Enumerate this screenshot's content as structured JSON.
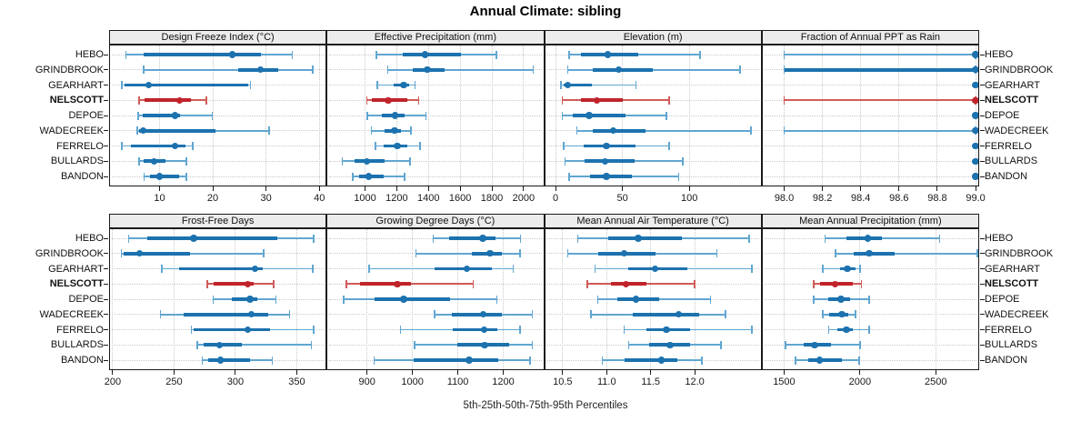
{
  "title": "Annual Climate: sibling",
  "caption": "5th-25th-50th-75th-95th Percentiles",
  "sites": [
    "HEBO",
    "GRINDBROOK",
    "GEARHART",
    "NELSCOTT",
    "DEPOE",
    "WADECREEK",
    "FERRELO",
    "BULLARDS",
    "BANDON"
  ],
  "highlight_site": "NELSCOTT",
  "colors": {
    "blue": "#1C72AE",
    "blue_light": "#60A6D1",
    "red": "#C0242B",
    "red_light": "#CF5B58",
    "grid": "#C9C9C9",
    "strip_bg": "#ECECEC",
    "border": "#1A1A1A"
  },
  "chart_data": [
    {
      "type": "dotplot-interval",
      "title": "Design Freeze Index (°C)",
      "percentiles": [
        5,
        25,
        50,
        75,
        95
      ],
      "xrange": [
        0.7,
        41.2
      ],
      "xticks": [
        10,
        20,
        30,
        40
      ],
      "xtick_labels": [
        "10",
        "20",
        "30",
        "40"
      ],
      "series": [
        {
          "site": "HEBO",
          "values": [
            3.7,
            7.0,
            23.7,
            29.0,
            34.9
          ]
        },
        {
          "site": "GRINDBROOK",
          "values": [
            7.0,
            24.8,
            29.0,
            32.3,
            38.8
          ]
        },
        {
          "site": "GEARHART",
          "values": [
            2.9,
            3.5,
            8.0,
            26.7,
            27.1
          ]
        },
        {
          "site": "NELSCOTT",
          "values": [
            6.2,
            7.2,
            13.8,
            15.9,
            18.8
          ]
        },
        {
          "site": "DEPOE",
          "values": [
            6.0,
            6.8,
            12.9,
            13.9,
            19.9
          ]
        },
        {
          "site": "WADECREEK",
          "values": [
            5.8,
            6.2,
            6.9,
            20.5,
            30.6
          ]
        },
        {
          "site": "FERRELO",
          "values": [
            2.9,
            4.6,
            12.9,
            14.8,
            16.2
          ]
        },
        {
          "site": "BULLARDS",
          "values": [
            6.2,
            7.0,
            9.0,
            11.1,
            15.0
          ]
        },
        {
          "site": "BANDON",
          "values": [
            7.1,
            8.2,
            10.0,
            13.7,
            15.0
          ]
        }
      ]
    },
    {
      "type": "dotplot-interval",
      "title": "Effective Precipitation (mm)",
      "percentiles": [
        5,
        25,
        50,
        75,
        95
      ],
      "xrange": [
        763,
        2124
      ],
      "xticks": [
        1000,
        1200,
        1400,
        1600,
        1800,
        2000
      ],
      "xtick_labels": [
        "1000",
        "1200",
        "1400",
        "1600",
        "1800",
        "2000"
      ],
      "series": [
        {
          "site": "HEBO",
          "values": [
            1073,
            1237,
            1379,
            1605,
            1827
          ]
        },
        {
          "site": "GRINDBROOK",
          "values": [
            1143,
            1303,
            1392,
            1501,
            2061
          ]
        },
        {
          "site": "GEARHART",
          "values": [
            1077,
            1181,
            1243,
            1279,
            1316
          ]
        },
        {
          "site": "NELSCOTT",
          "values": [
            1011,
            1040,
            1147,
            1266,
            1337
          ]
        },
        {
          "site": "DEPOE",
          "values": [
            1015,
            1106,
            1190,
            1250,
            1384
          ]
        },
        {
          "site": "WADECREEK",
          "values": [
            1040,
            1124,
            1186,
            1228,
            1290
          ]
        },
        {
          "site": "FERRELO",
          "values": [
            1064,
            1119,
            1203,
            1266,
            1346
          ]
        },
        {
          "site": "BULLARDS",
          "values": [
            857,
            936,
            1011,
            1124,
            1284
          ]
        },
        {
          "site": "BANDON",
          "values": [
            923,
            960,
            1021,
            1119,
            1250
          ]
        }
      ]
    },
    {
      "type": "dotplot-interval",
      "title": "Elevation (m)",
      "percentiles": [
        5,
        25,
        50,
        75,
        95
      ],
      "xrange": [
        -7.9,
        153.4
      ],
      "xticks": [
        0,
        50,
        100
      ],
      "xtick_labels": [
        "0",
        "50",
        "100"
      ],
      "series": [
        {
          "site": "HEBO",
          "values": [
            10,
            19,
            39,
            62,
            108
          ]
        },
        {
          "site": "GRINDBROOK",
          "values": [
            9,
            28,
            47,
            73,
            138
          ]
        },
        {
          "site": "GEARHART",
          "values": [
            4,
            6,
            9,
            27,
            60
          ]
        },
        {
          "site": "NELSCOTT",
          "values": [
            5,
            19,
            31,
            50,
            85
          ]
        },
        {
          "site": "DEPOE",
          "values": [
            5,
            13,
            25,
            52,
            83
          ]
        },
        {
          "site": "WADECREEK",
          "values": [
            16,
            28,
            43,
            67,
            146
          ]
        },
        {
          "site": "FERRELO",
          "values": [
            6,
            21,
            38,
            60,
            85
          ]
        },
        {
          "site": "BULLARDS",
          "values": [
            7,
            22,
            37,
            59,
            95
          ]
        },
        {
          "site": "BANDON",
          "values": [
            10,
            26,
            38,
            57,
            92
          ]
        }
      ]
    },
    {
      "type": "dotplot-interval",
      "title": "Fraction of Annual PPT as Rain",
      "percentiles": [
        5,
        25,
        50,
        75,
        95
      ],
      "xrange": [
        97.887,
        99.014
      ],
      "xticks": [
        98.0,
        98.2,
        98.4,
        98.6,
        98.8,
        99.0
      ],
      "xtick_labels": [
        "98.0",
        "98.2",
        "98.4",
        "98.6",
        "98.8",
        "99.0"
      ],
      "series": [
        {
          "site": "HEBO",
          "values": [
            98.0,
            99.0,
            99.0,
            99.0,
            99.0
          ]
        },
        {
          "site": "GRINDBROOK",
          "values": [
            98.0,
            98.0,
            99.0,
            99.0,
            99.0
          ]
        },
        {
          "site": "GEARHART",
          "values": [
            99.0,
            99.0,
            99.0,
            99.0,
            99.0
          ]
        },
        {
          "site": "NELSCOTT",
          "values": [
            98.0,
            99.0,
            99.0,
            99.0,
            99.0
          ]
        },
        {
          "site": "DEPOE",
          "values": [
            99.0,
            99.0,
            99.0,
            99.0,
            99.0
          ]
        },
        {
          "site": "WADECREEK",
          "values": [
            98.0,
            99.0,
            99.0,
            99.0,
            99.0
          ]
        },
        {
          "site": "FERRELO",
          "values": [
            99.0,
            99.0,
            99.0,
            99.0,
            99.0
          ]
        },
        {
          "site": "BULLARDS",
          "values": [
            99.0,
            99.0,
            99.0,
            99.0,
            99.0
          ]
        },
        {
          "site": "BANDON",
          "values": [
            99.0,
            99.0,
            99.0,
            99.0,
            99.0
          ]
        }
      ]
    },
    {
      "type": "dotplot-interval",
      "title": "Frost-Free Days",
      "percentiles": [
        5,
        25,
        50,
        75,
        95
      ],
      "xrange": [
        197.8,
        373.6
      ],
      "xticks": [
        200,
        250,
        300,
        350
      ],
      "xtick_labels": [
        "200",
        "250",
        "300",
        "350"
      ],
      "series": [
        {
          "site": "HEBO",
          "values": [
            213,
            228,
            266,
            334,
            364
          ]
        },
        {
          "site": "GRINDBROOK",
          "values": [
            207,
            209,
            222,
            263,
            323
          ]
        },
        {
          "site": "GEARHART",
          "values": [
            240,
            254,
            316,
            322,
            363
          ]
        },
        {
          "site": "NELSCOTT",
          "values": [
            277,
            282,
            310,
            315,
            331
          ]
        },
        {
          "site": "DEPOE",
          "values": [
            282,
            297,
            312,
            318,
            333
          ]
        },
        {
          "site": "WADECREEK",
          "values": [
            239,
            258,
            313,
            327,
            344
          ]
        },
        {
          "site": "FERRELO",
          "values": [
            264,
            266,
            310,
            328,
            364
          ]
        },
        {
          "site": "BULLARDS",
          "values": [
            269,
            274,
            287,
            305,
            362
          ]
        },
        {
          "site": "BANDON",
          "values": [
            273,
            278,
            288,
            312,
            330
          ]
        }
      ]
    },
    {
      "type": "dotplot-interval",
      "title": "Growing Degree Days (°C)",
      "percentiles": [
        5,
        25,
        50,
        75,
        95
      ],
      "xrange": [
        813,
        1288
      ],
      "xticks": [
        900,
        1000,
        1100,
        1200
      ],
      "xtick_labels": [
        "900",
        "1000",
        "1100",
        "1200"
      ],
      "series": [
        {
          "site": "HEBO",
          "values": [
            1046,
            1081,
            1155,
            1182,
            1238
          ]
        },
        {
          "site": "GRINDBROOK",
          "values": [
            1008,
            1131,
            1171,
            1196,
            1237
          ]
        },
        {
          "site": "GEARHART",
          "values": [
            905,
            1048,
            1120,
            1175,
            1222
          ]
        },
        {
          "site": "NELSCOTT",
          "values": [
            855,
            884,
            967,
            997,
            1134
          ]
        },
        {
          "site": "DEPOE",
          "values": [
            848,
            916,
            981,
            1082,
            1186
          ]
        },
        {
          "site": "WADECREEK",
          "values": [
            1049,
            1086,
            1156,
            1196,
            1264
          ]
        },
        {
          "site": "FERRELO",
          "values": [
            974,
            1088,
            1158,
            1186,
            1237
          ]
        },
        {
          "site": "BULLARDS",
          "values": [
            1005,
            1099,
            1159,
            1213,
            1264
          ]
        },
        {
          "site": "BANDON",
          "values": [
            916,
            1002,
            1125,
            1189,
            1259
          ]
        }
      ]
    },
    {
      "type": "dotplot-interval",
      "title": "Mean Annual Air Temperature (°C)",
      "percentiles": [
        5,
        25,
        50,
        75,
        95
      ],
      "xrange": [
        10.3,
        12.75
      ],
      "xticks": [
        10.5,
        11.0,
        11.5,
        12.0
      ],
      "xtick_labels": [
        "10.5",
        "11.0",
        "11.5",
        "12.0"
      ],
      "series": [
        {
          "site": "HEBO",
          "values": [
            10.67,
            11.02,
            11.36,
            11.85,
            12.62
          ]
        },
        {
          "site": "GRINDBROOK",
          "values": [
            10.56,
            10.9,
            11.2,
            11.55,
            12.25
          ]
        },
        {
          "site": "GEARHART",
          "values": [
            10.87,
            11.25,
            11.55,
            11.92,
            12.65
          ]
        },
        {
          "site": "NELSCOTT",
          "values": [
            10.78,
            11.05,
            11.22,
            11.45,
            12.0
          ]
        },
        {
          "site": "DEPOE",
          "values": [
            10.9,
            11.12,
            11.33,
            11.6,
            12.18
          ]
        },
        {
          "site": "WADECREEK",
          "values": [
            10.82,
            11.3,
            11.82,
            12.05,
            12.35
          ]
        },
        {
          "site": "FERRELO",
          "values": [
            11.2,
            11.45,
            11.68,
            11.95,
            12.65
          ]
        },
        {
          "site": "BULLARDS",
          "values": [
            11.25,
            11.48,
            11.72,
            11.95,
            12.3
          ]
        },
        {
          "site": "BANDON",
          "values": [
            10.95,
            11.2,
            11.62,
            11.8,
            12.08
          ]
        }
      ]
    },
    {
      "type": "dotplot-interval",
      "title": "Mean Annual Precipitation (mm)",
      "percentiles": [
        5,
        25,
        50,
        75,
        95
      ],
      "xrange": [
        1358,
        2780
      ],
      "xticks": [
        1500,
        2000,
        2500
      ],
      "xtick_labels": [
        "1500",
        "2000",
        "2500"
      ],
      "series": [
        {
          "site": "HEBO",
          "values": [
            1770,
            1910,
            2050,
            2145,
            2525
          ]
        },
        {
          "site": "GRINDBROOK",
          "values": [
            1840,
            1960,
            2060,
            2230,
            2775
          ]
        },
        {
          "site": "GEARHART",
          "values": [
            1755,
            1870,
            1918,
            1970,
            2000
          ]
        },
        {
          "site": "NELSCOTT",
          "values": [
            1695,
            1740,
            1835,
            1955,
            2010
          ]
        },
        {
          "site": "DEPOE",
          "values": [
            1695,
            1790,
            1875,
            1935,
            2060
          ]
        },
        {
          "site": "WADECREEK",
          "values": [
            1755,
            1800,
            1880,
            1925,
            1970
          ]
        },
        {
          "site": "FERRELO",
          "values": [
            1795,
            1850,
            1910,
            1955,
            2060
          ]
        },
        {
          "site": "BULLARDS",
          "values": [
            1510,
            1630,
            1700,
            1810,
            2000
          ]
        },
        {
          "site": "BANDON",
          "values": [
            1575,
            1660,
            1735,
            1880,
            1995
          ]
        }
      ]
    }
  ]
}
